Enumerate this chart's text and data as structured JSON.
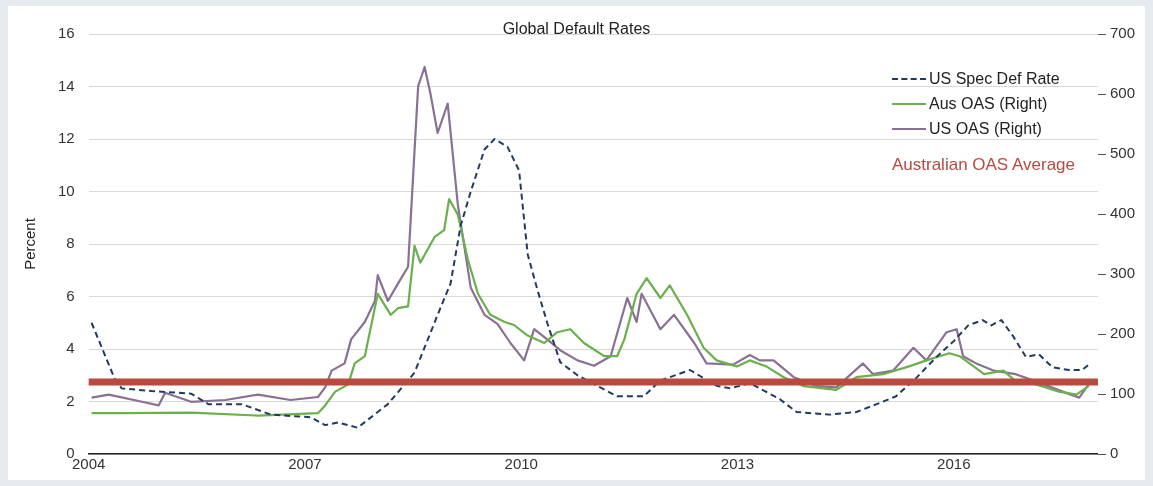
{
  "chart_data": {
    "type": "line",
    "title": "Global Default Rates",
    "ylabel": "Percent",
    "xlim": [
      2004,
      2018
    ],
    "xticks": [
      2004,
      2007,
      2010,
      2013,
      2016
    ],
    "ylim": [
      0,
      16
    ],
    "yticks": [
      0,
      2,
      4,
      6,
      8,
      10,
      12,
      14,
      16
    ],
    "y2lim": [
      0,
      700
    ],
    "y2ticks": [
      0,
      100,
      200,
      300,
      400,
      500,
      600,
      700
    ],
    "grid": "y",
    "legend": "top right",
    "marker": "none",
    "series": [
      {
        "name": "US Spec Def Rate",
        "color": "#1f3b64",
        "line_style": "dashed",
        "x": [
          2004.04,
          2004.37,
          2004.46,
          2004.87,
          2005.42,
          2005.66,
          2006.12,
          2006.53,
          2007.08,
          2007.28,
          2007.46,
          2007.73,
          2008.15,
          2008.52,
          2008.84,
          2009.02,
          2009.16,
          2009.3,
          2009.49,
          2009.63,
          2009.81,
          2009.97,
          2010.09,
          2010.22,
          2010.36,
          2010.54,
          2010.78,
          2011.05,
          2011.33,
          2011.7,
          2011.93,
          2012.34,
          2012.71,
          2012.9,
          2013.17,
          2013.58,
          2013.82,
          2014.28,
          2014.65,
          2014.93,
          2015.2,
          2015.48,
          2015.76,
          2016.0,
          2016.2,
          2016.4,
          2016.52,
          2016.66,
          2016.82,
          2017.0,
          2017.18,
          2017.37,
          2017.6,
          2017.78,
          2017.87
        ],
        "values": [
          5.0,
          2.8,
          2.5,
          2.4,
          2.3,
          1.9,
          1.9,
          1.5,
          1.4,
          1.1,
          1.2,
          1.0,
          1.9,
          3.1,
          5.3,
          6.5,
          8.7,
          10.0,
          11.6,
          12.0,
          11.7,
          10.8,
          7.6,
          6.3,
          5.0,
          3.5,
          3.0,
          2.6,
          2.2,
          2.2,
          2.8,
          3.2,
          2.6,
          2.5,
          2.7,
          2.1,
          1.6,
          1.5,
          1.6,
          1.9,
          2.2,
          2.9,
          3.7,
          4.3,
          4.9,
          5.1,
          4.9,
          5.1,
          4.5,
          3.7,
          3.8,
          3.3,
          3.2,
          3.2,
          3.4
        ]
      },
      {
        "name": "Aus OAS (Right)",
        "color": "#6ab04c",
        "line_style": "solid",
        "axis": "y2",
        "x": [
          2004.04,
          2004.5,
          2005.42,
          2006.35,
          2007.18,
          2007.28,
          2007.42,
          2007.6,
          2007.69,
          2007.83,
          2008.01,
          2008.19,
          2008.29,
          2008.43,
          2008.52,
          2008.6,
          2008.8,
          2008.93,
          2009.0,
          2009.12,
          2009.26,
          2009.4,
          2009.57,
          2009.77,
          2009.9,
          2010.08,
          2010.32,
          2010.5,
          2010.68,
          2010.87,
          2011.15,
          2011.33,
          2011.43,
          2011.6,
          2011.74,
          2011.93,
          2012.06,
          2012.3,
          2012.53,
          2012.71,
          2012.99,
          2013.17,
          2013.4,
          2013.64,
          2013.92,
          2014.37,
          2014.65,
          2015.02,
          2015.38,
          2015.62,
          2015.8,
          2015.94,
          2016.08,
          2016.22,
          2016.42,
          2016.69,
          2016.86,
          2017.14,
          2017.46,
          2017.7,
          2017.87
        ],
        "values": [
          68,
          68,
          69,
          64,
          68,
          81,
          104,
          116,
          151,
          163,
          267,
          232,
          243,
          246,
          347,
          319,
          362,
          373,
          425,
          399,
          324,
          267,
          232,
          220,
          215,
          198,
          185,
          203,
          208,
          185,
          163,
          163,
          191,
          267,
          293,
          260,
          281,
          232,
          177,
          156,
          146,
          156,
          146,
          128,
          113,
          107,
          128,
          133,
          146,
          156,
          163,
          168,
          163,
          151,
          133,
          139,
          121,
          116,
          104,
          99,
          113
        ]
      },
      {
        "name": "US OAS (Right)",
        "color": "#8a7094",
        "line_style": "solid",
        "axis": "y2",
        "x": [
          2004.04,
          2004.28,
          2004.74,
          2004.97,
          2005.06,
          2005.42,
          2005.9,
          2006.35,
          2006.8,
          2007.18,
          2007.28,
          2007.37,
          2007.55,
          2007.64,
          2007.83,
          2007.97,
          2008.01,
          2008.15,
          2008.29,
          2008.43,
          2008.57,
          2008.66,
          2008.74,
          2008.84,
          2008.98,
          2009.12,
          2009.3,
          2009.49,
          2009.67,
          2009.85,
          2010.04,
          2010.18,
          2010.36,
          2010.54,
          2010.78,
          2011.01,
          2011.24,
          2011.43,
          2011.47,
          2011.6,
          2011.67,
          2011.93,
          2012.12,
          2012.4,
          2012.57,
          2012.94,
          2013.17,
          2013.31,
          2013.5,
          2013.78,
          2014.1,
          2014.37,
          2014.74,
          2014.88,
          2015.16,
          2015.44,
          2015.62,
          2015.9,
          2016.04,
          2016.13,
          2016.31,
          2016.55,
          2016.86,
          2017.14,
          2017.51,
          2017.74,
          2017.87
        ],
        "values": [
          94,
          99,
          87,
          81,
          102,
          87,
          90,
          99,
          90,
          95,
          111,
          139,
          151,
          191,
          220,
          255,
          298,
          255,
          284,
          312,
          613,
          645,
          601,
          535,
          584,
          416,
          277,
          232,
          217,
          185,
          156,
          208,
          191,
          173,
          156,
          147,
          163,
          243,
          260,
          220,
          267,
          208,
          232,
          185,
          151,
          149,
          165,
          156,
          156,
          128,
          113,
          111,
          151,
          133,
          139,
          177,
          156,
          203,
          208,
          163,
          151,
          139,
          133,
          121,
          104,
          94,
          116
        ]
      }
    ],
    "ref_lines": [
      {
        "axis": "y2",
        "value": 120,
        "label": "Australian OAS Average",
        "color": "#b84a3f"
      }
    ]
  }
}
